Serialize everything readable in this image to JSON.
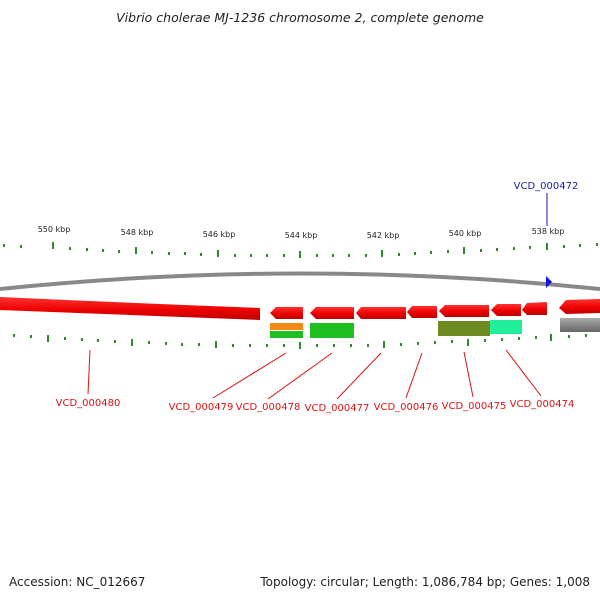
{
  "title": "Vibrio cholerae MJ-1236 chromosome 2, complete genome",
  "footer": {
    "accession": "Accession: NC_012667",
    "summary": "Topology: circular; Length: 1,086,784 bp; Genes: 1,008"
  },
  "colors": {
    "gene_red": "#ee0000",
    "gene_label_red": "#dd1111",
    "highlight_label_blue": "#1a1aaa",
    "highlight_marker_blue": "#1010ee",
    "tick_green": "#2e8b2e",
    "orange_domain": "#f08a10",
    "green_domain": "#1fbf1f",
    "olive_domain": "#6e8a22",
    "teal_domain": "#22ee99",
    "gray_backbone": "#888888"
  },
  "scale": {
    "unit": "kbp",
    "labels": [
      "550 kbp",
      "548 kbp",
      "546 kbp",
      "544 kbp",
      "542 kbp",
      "540 kbp",
      "538 kbp"
    ]
  },
  "highlight": {
    "label": "VCD_000472"
  },
  "genes": [
    {
      "label": "VCD_000480",
      "strand": "reverse"
    },
    {
      "label": "VCD_000479",
      "strand": "reverse"
    },
    {
      "label": "VCD_000478",
      "strand": "reverse"
    },
    {
      "label": "VCD_000477",
      "strand": "reverse"
    },
    {
      "label": "VCD_000476",
      "strand": "reverse"
    },
    {
      "label": "VCD_000475",
      "strand": "reverse"
    },
    {
      "label": "VCD_000474",
      "strand": "reverse"
    }
  ]
}
